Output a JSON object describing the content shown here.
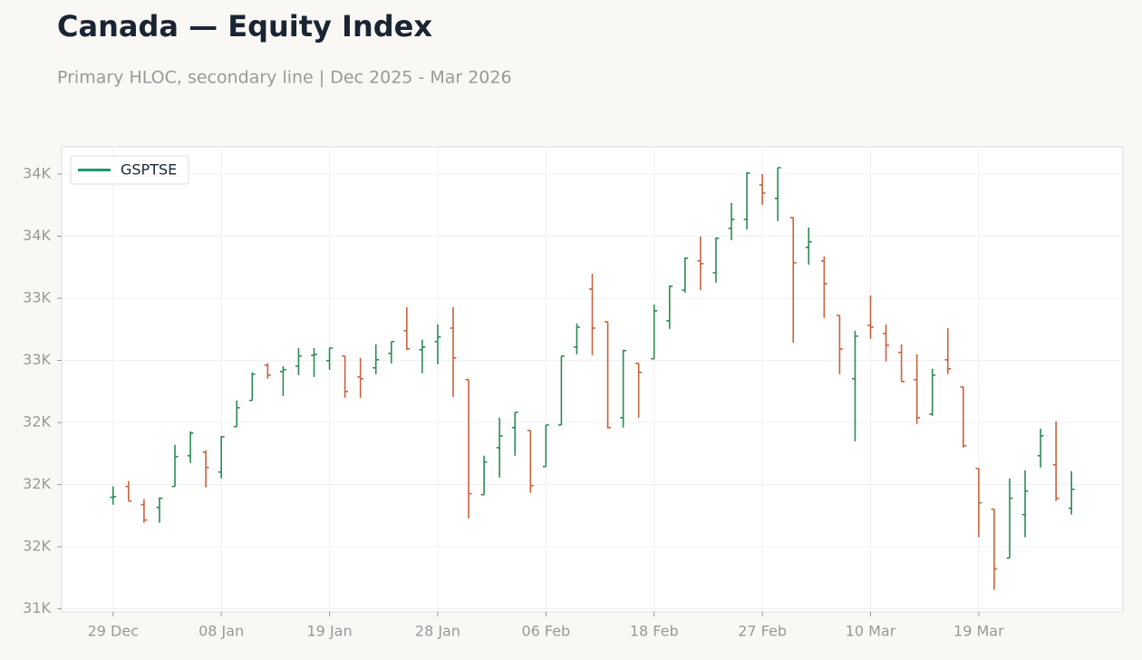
{
  "chart_data": {
    "type": "ohlc",
    "title": "Canada — Equity Index",
    "subtitle": "Primary HLOC, secondary line | Dec 2025 - Mar 2026",
    "categories": [
      "29 Dec",
      null,
      null,
      null,
      null,
      null,
      null,
      "08 Jan",
      null,
      null,
      null,
      null,
      null,
      null,
      "19 Jan",
      null,
      null,
      null,
      null,
      null,
      null,
      "28 Jan",
      null,
      null,
      null,
      null,
      null,
      null,
      "06 Feb",
      null,
      null,
      null,
      null,
      null,
      null,
      "18 Feb",
      null,
      null,
      null,
      null,
      null,
      null,
      "27 Feb",
      null,
      null,
      null,
      null,
      null,
      null,
      "10 Mar",
      null,
      null,
      null,
      null,
      null,
      null,
      "19 Mar",
      null,
      null,
      null,
      null,
      null,
      null
    ],
    "series": [
      {
        "name": "GSPTSE",
        "color": "#1a9a6a",
        "up_color": "#2a8a57",
        "down_color": "#c8623e",
        "open": [
          31918,
          31988,
          31871,
          31853,
          31988,
          32186,
          32209,
          32081,
          32373,
          32542,
          32769,
          32728,
          32763,
          32833,
          32798,
          32828,
          32693,
          32752,
          32845,
          32991,
          32868,
          32921,
          33008,
          32676,
          31935,
          32238,
          32367,
          32349,
          32116,
          32384,
          32886,
          33259,
          33049,
          32431,
          32781,
          32810,
          33055,
          33253,
          33440,
          33364,
          33650,
          33708,
          33930,
          33843,
          33720,
          33528,
          33440,
          33090,
          32682,
          33026,
          32973,
          32851,
          32676,
          32454,
          32804,
          32629,
          32104,
          31842,
          31527,
          31807,
          32186,
          32128,
          31848
        ],
        "high": [
          31988,
          32023,
          31906,
          31918,
          32256,
          32343,
          32221,
          32314,
          32542,
          32723,
          32781,
          32763,
          32880,
          32880,
          32880,
          32828,
          32816,
          32903,
          32921,
          33143,
          32933,
          33032,
          33143,
          32676,
          32186,
          32431,
          32466,
          32349,
          32384,
          32828,
          33038,
          33358,
          33049,
          32868,
          32781,
          33160,
          33283,
          33463,
          33598,
          33592,
          33813,
          34012,
          34000,
          34041,
          33720,
          33656,
          33469,
          33090,
          32991,
          33218,
          33032,
          32903,
          32839,
          32746,
          33008,
          32629,
          32104,
          31842,
          32040,
          32093,
          32361,
          32408,
          32087
        ],
        "low": [
          31871,
          31894,
          31754,
          31754,
          31988,
          32139,
          31982,
          32040,
          32373,
          32542,
          32682,
          32571,
          32705,
          32693,
          32740,
          32559,
          32559,
          32711,
          32781,
          32868,
          32717,
          32775,
          32565,
          31783,
          31935,
          32046,
          32186,
          31947,
          32116,
          32384,
          32839,
          32833,
          32361,
          32367,
          32431,
          32810,
          33003,
          33236,
          33253,
          33300,
          33574,
          33644,
          33802,
          33697,
          32915,
          33417,
          33073,
          32711,
          32279,
          32938,
          32793,
          32664,
          32390,
          32443,
          32711,
          32238,
          31661,
          31323,
          31527,
          31661,
          32110,
          31894,
          31807
        ],
        "close": [
          31923,
          31894,
          31772,
          31912,
          32180,
          32332,
          32110,
          32308,
          32495,
          32711,
          32705,
          32740,
          32828,
          32839,
          32880,
          32600,
          32682,
          32804,
          32921,
          32874,
          32886,
          32950,
          32816,
          31941,
          32145,
          32314,
          32466,
          31993,
          32384,
          32828,
          33014,
          33008,
          32367,
          32863,
          32723,
          33119,
          33277,
          33458,
          33423,
          33586,
          33708,
          34006,
          33878,
          34041,
          33428,
          33563,
          33294,
          32874,
          32956,
          33014,
          32898,
          32664,
          32431,
          32705,
          32746,
          32250,
          31883,
          31457,
          31912,
          31958,
          32314,
          31912,
          31970
        ]
      }
    ],
    "ylim": [
      31180,
      34175
    ],
    "yticks": [
      {
        "value": 31200,
        "label": "31K"
      },
      {
        "value": 31600,
        "label": "32K"
      },
      {
        "value": 32000,
        "label": "32K"
      },
      {
        "value": 32400,
        "label": "32K"
      },
      {
        "value": 32800,
        "label": "33K"
      },
      {
        "value": 33200,
        "label": "33K"
      },
      {
        "value": 33600,
        "label": "34K"
      },
      {
        "value": 34000,
        "label": "34K"
      }
    ],
    "grid": true,
    "legend": "upper left"
  }
}
